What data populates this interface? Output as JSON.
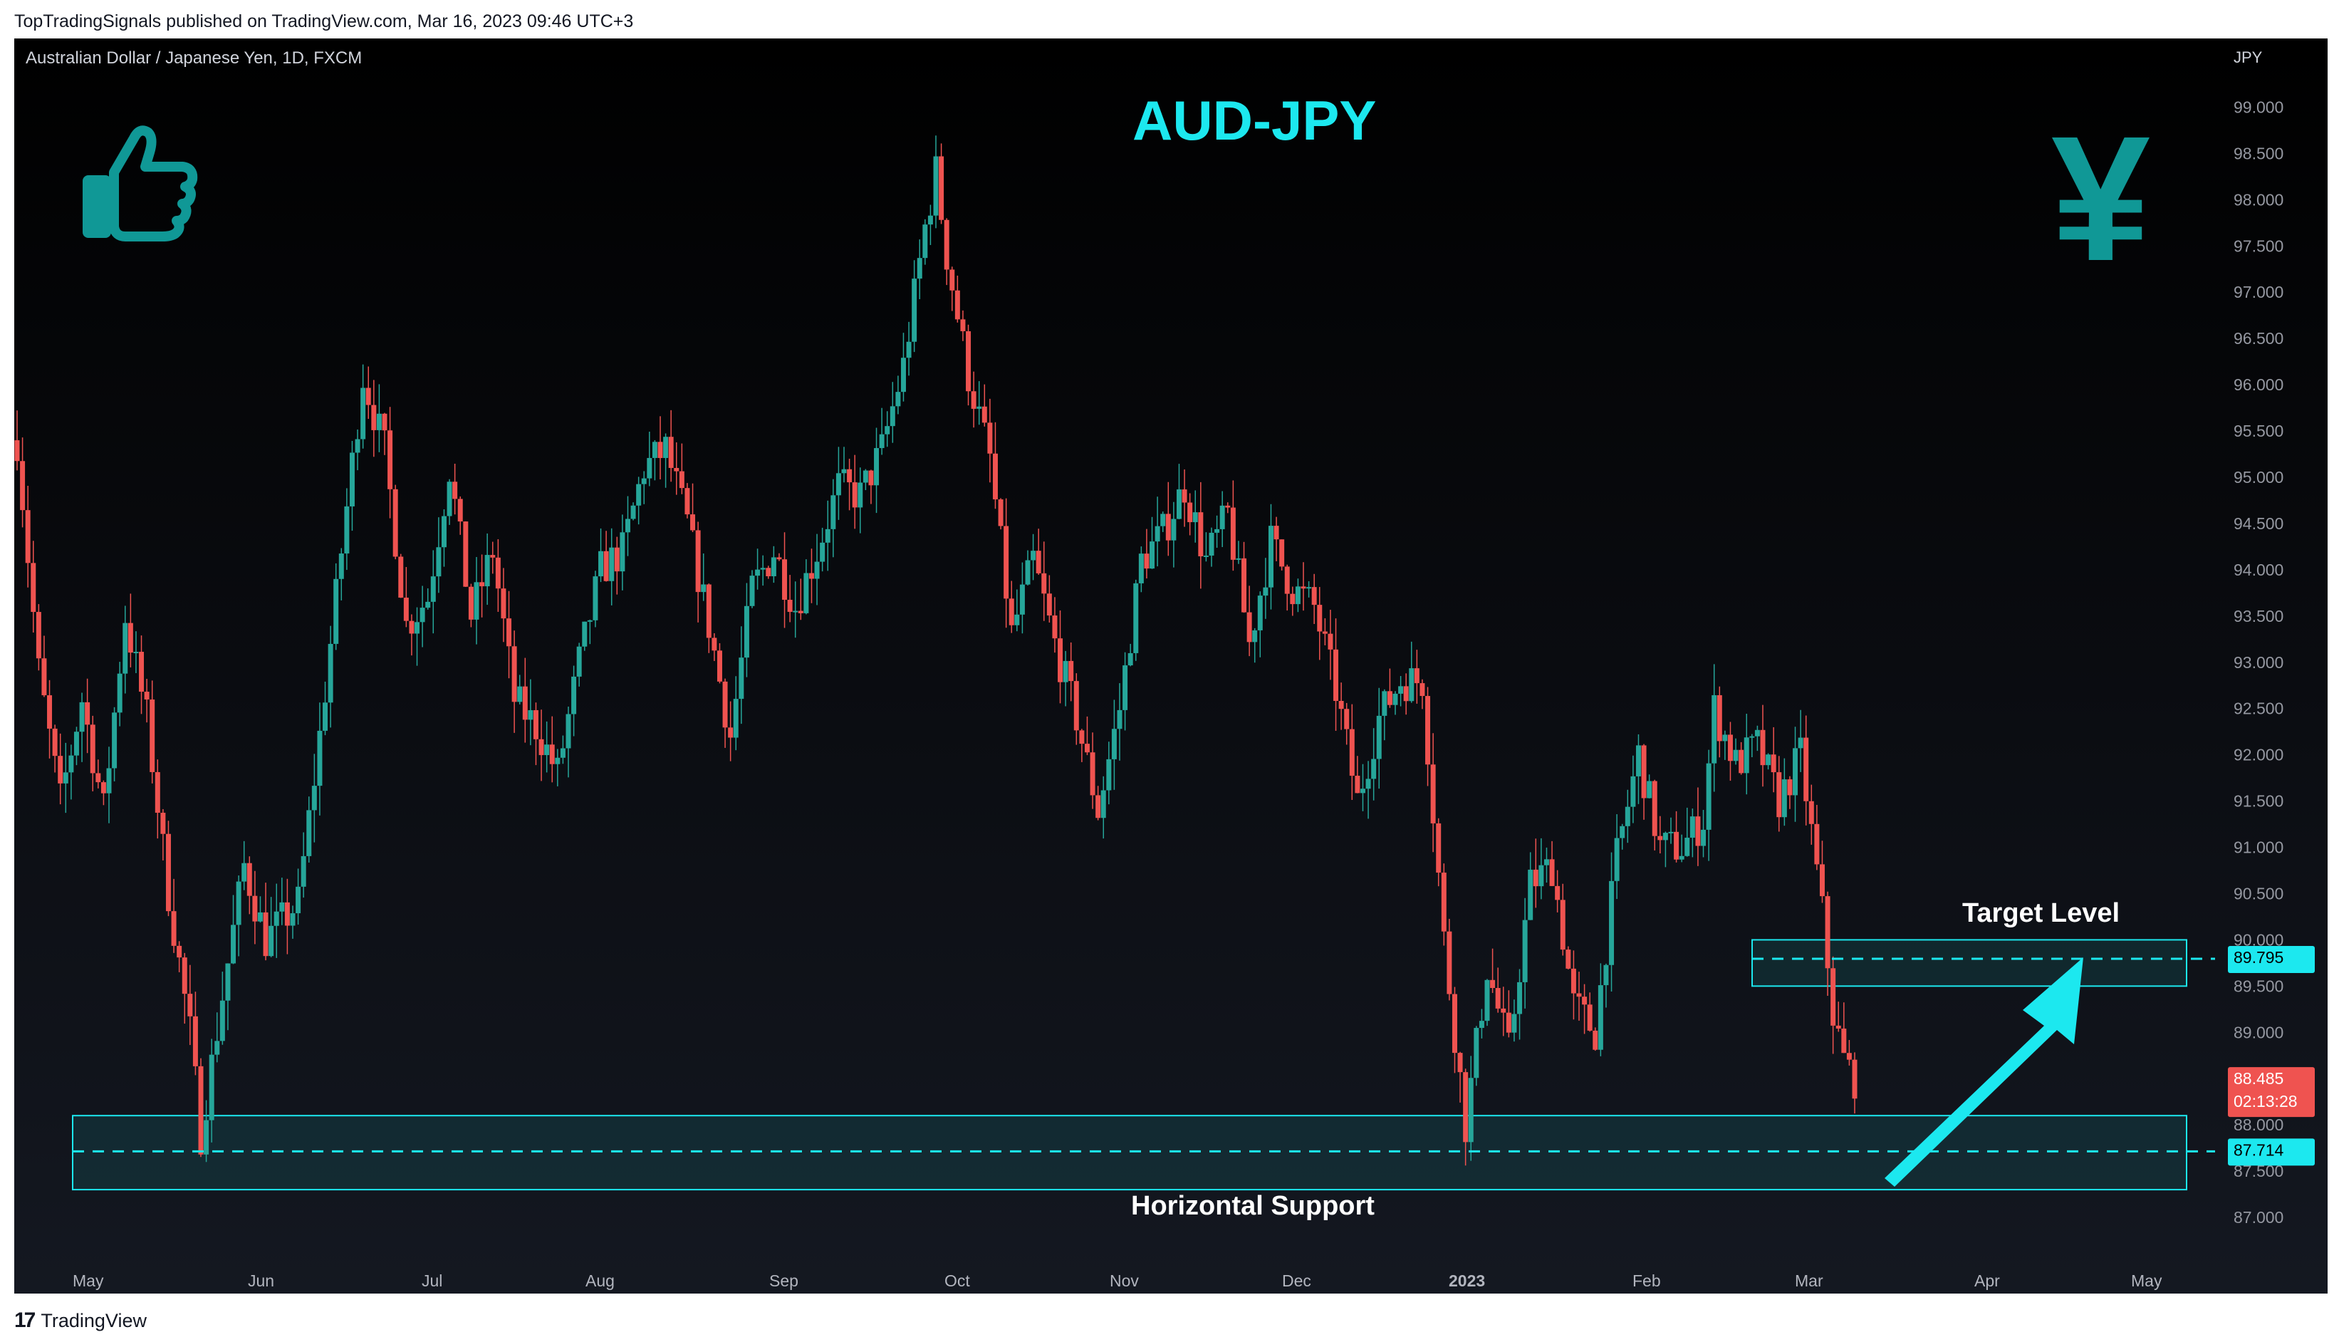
{
  "header": {
    "published": "TopTradingSignals published on TradingView.com, Mar 16, 2023 09:46 UTC+3"
  },
  "symbol": {
    "label": "Australian Dollar / Japanese Yen, 1D, FXCM"
  },
  "title": "AUD-JPY",
  "icons": {
    "left": "thumbs-up-icon",
    "right": "yen-icon"
  },
  "annotations": {
    "target": "Target Level",
    "support": "Horizontal Support"
  },
  "footer": {
    "brand": "TradingView",
    "logo": "tradingview-logo-icon"
  },
  "colors": {
    "up": "#26a69a",
    "down": "#ef5350",
    "accent": "#1ce8ef",
    "icon": "#109896"
  },
  "chart_data": {
    "type": "candlestick",
    "currency": "JPY",
    "ylim": [
      86.5,
      99.25
    ],
    "yticks": [
      "99.000",
      "98.500",
      "98.000",
      "97.500",
      "97.000",
      "96.500",
      "96.000",
      "95.500",
      "95.000",
      "94.500",
      "94.000",
      "93.500",
      "93.000",
      "92.500",
      "92.000",
      "91.500",
      "91.000",
      "90.500",
      "90.000",
      "89.500",
      "89.000",
      "88.500",
      "88.000",
      "87.500",
      "87.000"
    ],
    "xticks": [
      "May",
      "Jun",
      "Jul",
      "Aug",
      "Sep",
      "Oct",
      "Nov",
      "Dec",
      "2023",
      "Feb",
      "Mar",
      "Apr",
      "May"
    ],
    "price_path": [
      [
        0,
        95.4
      ],
      [
        4,
        92.9
      ],
      [
        8,
        91.5
      ],
      [
        12,
        92.6
      ],
      [
        16,
        91.4
      ],
      [
        20,
        93.5
      ],
      [
        24,
        92.4
      ],
      [
        28,
        90.5
      ],
      [
        32,
        89.0
      ],
      [
        34,
        87.9
      ],
      [
        38,
        89.4
      ],
      [
        42,
        90.8
      ],
      [
        46,
        90.0
      ],
      [
        52,
        90.4
      ],
      [
        56,
        92.2
      ],
      [
        60,
        94.2
      ],
      [
        64,
        96.1
      ],
      [
        68,
        95.3
      ],
      [
        72,
        93.4
      ],
      [
        76,
        93.7
      ],
      [
        80,
        95.1
      ],
      [
        84,
        93.5
      ],
      [
        88,
        94.2
      ],
      [
        92,
        92.6
      ],
      [
        96,
        92.3
      ],
      [
        100,
        91.8
      ],
      [
        104,
        93.0
      ],
      [
        108,
        94.0
      ],
      [
        112,
        94.2
      ],
      [
        116,
        95.1
      ],
      [
        120,
        95.3
      ],
      [
        124,
        94.5
      ],
      [
        128,
        93.4
      ],
      [
        132,
        92.2
      ],
      [
        136,
        93.8
      ],
      [
        140,
        94.2
      ],
      [
        144,
        93.6
      ],
      [
        148,
        94.2
      ],
      [
        152,
        94.9
      ],
      [
        156,
        94.8
      ],
      [
        160,
        95.3
      ],
      [
        164,
        96.2
      ],
      [
        168,
        97.7
      ],
      [
        170,
        98.3
      ],
      [
        172,
        97.4
      ],
      [
        176,
        96.1
      ],
      [
        180,
        95.2
      ],
      [
        184,
        93.3
      ],
      [
        188,
        94.1
      ],
      [
        192,
        93.2
      ],
      [
        196,
        92.4
      ],
      [
        200,
        91.4
      ],
      [
        204,
        92.5
      ],
      [
        208,
        94.1
      ],
      [
        212,
        94.4
      ],
      [
        216,
        94.9
      ],
      [
        220,
        94.1
      ],
      [
        224,
        94.6
      ],
      [
        228,
        93.2
      ],
      [
        232,
        94.3
      ],
      [
        236,
        93.8
      ],
      [
        240,
        93.6
      ],
      [
        244,
        92.7
      ],
      [
        248,
        91.5
      ],
      [
        252,
        92.4
      ],
      [
        256,
        92.8
      ],
      [
        260,
        92.8
      ],
      [
        264,
        90.0
      ],
      [
        268,
        88.0
      ],
      [
        272,
        89.7
      ],
      [
        276,
        88.8
      ],
      [
        280,
        90.6
      ],
      [
        284,
        90.8
      ],
      [
        288,
        89.3
      ],
      [
        292,
        89.0
      ],
      [
        296,
        90.9
      ],
      [
        300,
        92.0
      ],
      [
        304,
        91.0
      ],
      [
        308,
        91.0
      ],
      [
        312,
        91.3
      ],
      [
        314,
        92.5
      ],
      [
        318,
        91.9
      ],
      [
        322,
        92.1
      ],
      [
        326,
        91.5
      ],
      [
        330,
        92.0
      ],
      [
        334,
        90.3
      ],
      [
        336,
        89.2
      ],
      [
        338,
        88.7
      ],
      [
        340,
        88.5
      ]
    ],
    "support_zone": [
      87.3,
      88.1
    ],
    "support_level": "87.714",
    "target_zone": [
      89.5,
      90.0
    ],
    "target_level": "89.795",
    "last_price": "88.485",
    "countdown": "02:13:28"
  }
}
